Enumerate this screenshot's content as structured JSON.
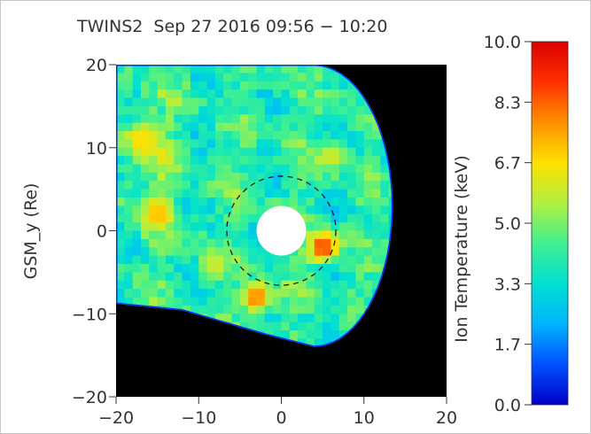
{
  "chart_data": {
    "type": "heatmap",
    "title": "TWINS2  Sep 27 2016 09:56 − 10:20",
    "ylabel": "GSM_y (Re)",
    "xlabel": "",
    "xlim": [
      -20,
      20
    ],
    "ylim": [
      -20,
      20
    ],
    "x_ticks": [
      "−20",
      "−10",
      "0",
      "10",
      "20"
    ],
    "y_ticks": [
      "20",
      "10",
      "0",
      "−10",
      "−20"
    ],
    "colorbar": {
      "label": "Ion Temperature (keV)",
      "range": [
        0.0,
        10.0
      ],
      "ticks": [
        "10.0",
        "8.3",
        "6.7",
        "5.0",
        "3.3",
        "1.7",
        "0.0"
      ],
      "colormap": [
        "#0000c8",
        "#0050ff",
        "#00b4ff",
        "#00e0d0",
        "#40f090",
        "#b0f040",
        "#ffe000",
        "#ff9000",
        "#ff3000",
        "#dc0000"
      ]
    },
    "background_color": "#000000",
    "earth": {
      "x": 0,
      "y": 0,
      "radius": 3
    },
    "reference_circle": {
      "x": 0,
      "y": 0,
      "radius": 6.6,
      "style": "dashed"
    },
    "hot_spots": [
      {
        "x": 5.0,
        "y": -2.0,
        "value": 9.0
      },
      {
        "x": -3.0,
        "y": -8.0,
        "value": 8.3
      },
      {
        "x": -17.0,
        "y": 11.0,
        "value": 6.9
      },
      {
        "x": -15.0,
        "y": 2.0,
        "value": 7.2
      },
      {
        "x": 6.0,
        "y": 9.0,
        "value": 6.2
      },
      {
        "x": -8.0,
        "y": -4.0,
        "value": 6.0
      }
    ]
  }
}
